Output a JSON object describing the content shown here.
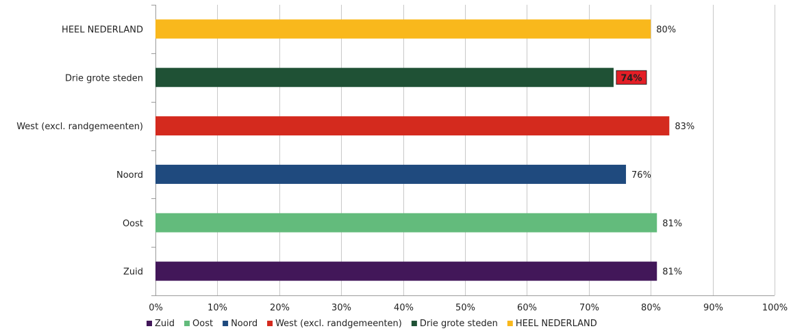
{
  "chart_data": {
    "type": "bar",
    "orientation": "horizontal",
    "categories": [
      "HEEL NEDERLAND",
      "Drie grote steden",
      "West (excl. randgemeenten)",
      "Noord",
      "Oost",
      "Zuid"
    ],
    "values": [
      80,
      74,
      83,
      76,
      81,
      81
    ],
    "value_labels": [
      "80%",
      "74%",
      "83%",
      "76%",
      "81%",
      "81%"
    ],
    "highlighted_index": 1,
    "highlight_color": "#e41e26",
    "colors": [
      "#f9b81c",
      "#1f5135",
      "#d42a1e",
      "#1f4a7e",
      "#63bb7c",
      "#421759"
    ],
    "xlim": [
      0,
      100
    ],
    "xticks": [
      "0%",
      "10%",
      "20%",
      "30%",
      "40%",
      "50%",
      "60%",
      "70%",
      "80%",
      "90%",
      "100%"
    ],
    "grid": true,
    "legend_position": "bottom",
    "legend": [
      "Zuid",
      "Oost",
      "Noord",
      "West (excl. randgemeenten)",
      "Drie grote steden",
      "HEEL NEDERLAND"
    ],
    "legend_colors": [
      "#421759",
      "#63bb7c",
      "#1f4a7e",
      "#d42a1e",
      "#1f5135",
      "#f9b81c"
    ]
  }
}
